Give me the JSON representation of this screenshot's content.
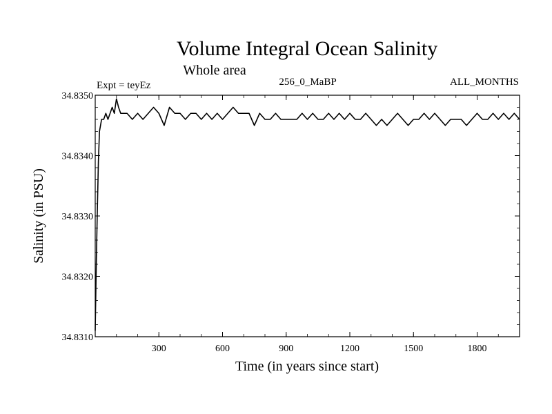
{
  "chart_data": {
    "type": "line",
    "title": "Volume Integral Ocean Salinity",
    "subtitle": "Whole area",
    "experiment_label": "Expt = teyEz",
    "run_label": "256_0_MaBP",
    "months_label": "ALL_MONTHS",
    "xlabel": "Time (in years since start)",
    "ylabel": "Salinity (in PSU)",
    "xlim": [
      0,
      2000
    ],
    "ylim": [
      34.831,
      34.835
    ],
    "x_ticks": [
      300,
      600,
      900,
      1200,
      1500,
      1800
    ],
    "x_tick_labels": [
      "300",
      "600",
      "900",
      "1200",
      "1500",
      "1800"
    ],
    "y_ticks": [
      34.831,
      34.832,
      34.833,
      34.834,
      34.835
    ],
    "y_tick_labels": [
      "34.8310",
      "34.8320",
      "34.8330",
      "34.8340",
      "34.8350"
    ],
    "series": [
      {
        "name": "Salinity",
        "color": "#000000",
        "x": [
          0,
          5,
          10,
          15,
          20,
          30,
          40,
          50,
          60,
          70,
          80,
          90,
          100,
          110,
          120,
          130,
          140,
          150,
          175,
          200,
          225,
          250,
          275,
          300,
          325,
          350,
          375,
          400,
          425,
          450,
          475,
          500,
          525,
          550,
          575,
          600,
          625,
          650,
          675,
          700,
          725,
          750,
          775,
          800,
          825,
          850,
          875,
          900,
          925,
          950,
          975,
          1000,
          1025,
          1050,
          1075,
          1100,
          1125,
          1150,
          1175,
          1200,
          1225,
          1250,
          1275,
          1300,
          1325,
          1350,
          1375,
          1400,
          1425,
          1450,
          1475,
          1500,
          1525,
          1550,
          1575,
          1600,
          1625,
          1650,
          1675,
          1700,
          1725,
          1750,
          1775,
          1800,
          1825,
          1850,
          1875,
          1900,
          1925,
          1950,
          1975,
          2000
        ],
        "values": [
          34.8311,
          34.8322,
          34.8331,
          34.8339,
          34.8344,
          34.8346,
          34.8346,
          34.8347,
          34.8346,
          34.8347,
          34.8348,
          34.8347,
          34.83494,
          34.8348,
          34.8347,
          34.8347,
          34.8347,
          34.8347,
          34.8346,
          34.8347,
          34.8346,
          34.8347,
          34.8348,
          34.8347,
          34.8345,
          34.8348,
          34.8347,
          34.8347,
          34.8346,
          34.8347,
          34.8347,
          34.8346,
          34.8347,
          34.8346,
          34.8347,
          34.8346,
          34.8347,
          34.8348,
          34.8347,
          34.8347,
          34.8347,
          34.8345,
          34.8347,
          34.8346,
          34.8346,
          34.8347,
          34.8346,
          34.8346,
          34.8346,
          34.8346,
          34.8347,
          34.8346,
          34.8347,
          34.8346,
          34.8346,
          34.8347,
          34.8346,
          34.8347,
          34.8346,
          34.8347,
          34.8346,
          34.8346,
          34.8347,
          34.8346,
          34.8345,
          34.8346,
          34.8345,
          34.8346,
          34.8347,
          34.8346,
          34.8345,
          34.8346,
          34.8346,
          34.8347,
          34.8346,
          34.8347,
          34.8346,
          34.8345,
          34.8346,
          34.8346,
          34.8346,
          34.8345,
          34.8346,
          34.8347,
          34.8346,
          34.8346,
          34.8347,
          34.8346,
          34.8347,
          34.8346,
          34.8347,
          34.8346
        ]
      }
    ]
  }
}
